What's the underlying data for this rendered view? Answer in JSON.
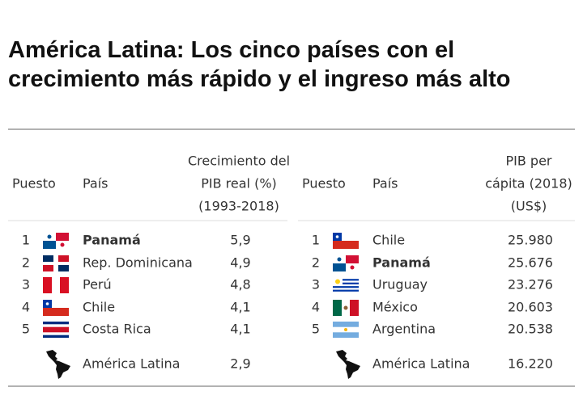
{
  "title": [
    "América Latina: Los cinco países con el",
    "crecimiento más rápido y el ingreso más alto"
  ],
  "tables": [
    {
      "header": {
        "rank": "Puesto",
        "country": "País",
        "value": [
          "Crecimiento del",
          "PIB real (%)",
          "(1993-2018)"
        ]
      },
      "rows": [
        {
          "rank": 1,
          "country": "Panamá",
          "value": "5,9",
          "bold": true
        },
        {
          "rank": 2,
          "country": "Rep. Dominicana",
          "value": "4,9"
        },
        {
          "rank": 3,
          "country": "Perú",
          "value": "4,8"
        },
        {
          "rank": 4,
          "country": "Chile",
          "value": "4,1"
        },
        {
          "rank": 5,
          "country": "Costa Rica",
          "value": "4,1"
        }
      ],
      "total": {
        "country": "América Latina",
        "value": "2,9"
      }
    },
    {
      "header": {
        "rank": "Puesto",
        "country": "País",
        "value": [
          "PIB per",
          "cápita (2018)",
          "(US$)"
        ]
      },
      "rows": [
        {
          "rank": 1,
          "country": "Chile",
          "value": "25.980"
        },
        {
          "rank": 2,
          "country": "Panamá",
          "value": "25.676",
          "bold": true
        },
        {
          "rank": 3,
          "country": "Uruguay",
          "value": "23.276"
        },
        {
          "rank": 4,
          "country": "México",
          "value": "20.603"
        },
        {
          "rank": 5,
          "country": "Argentina",
          "value": "20.538"
        }
      ],
      "total": {
        "country": "América Latina",
        "value": "16.220"
      }
    }
  ]
}
